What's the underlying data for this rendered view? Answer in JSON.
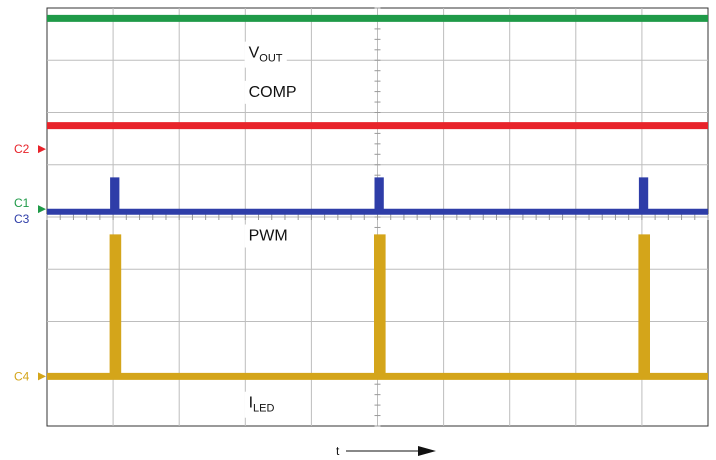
{
  "chart_data": {
    "type": "line",
    "title": "",
    "xlabel": "t",
    "ylabel": "",
    "grid": true,
    "grid_divisions": {
      "x": 10,
      "y": 8
    },
    "xlim": [
      0,
      10
    ],
    "ylim": [
      0,
      8
    ],
    "series": [
      {
        "id": "vout",
        "name_main": "V",
        "name_sub": "OUT",
        "color": "#1f9a48",
        "x": [
          0,
          10
        ],
        "y": [
          7.8,
          7.8
        ]
      },
      {
        "id": "comp",
        "name_main": "COMP",
        "name_sub": "",
        "color": "#e8232a",
        "x": [
          0,
          10
        ],
        "y": [
          5.75,
          5.75
        ]
      },
      {
        "id": "pwm",
        "name_main": "PWM",
        "name_sub": "",
        "color": "#2e3da8",
        "x": [
          0,
          1.0,
          1.0,
          1.05,
          1.05,
          5.0,
          5.0,
          5.05,
          5.05,
          9.0,
          9.0,
          9.05,
          9.05,
          10
        ],
        "y": [
          4.1,
          4.1,
          4.7,
          4.7,
          4.1,
          4.1,
          4.7,
          4.7,
          4.1,
          4.1,
          4.7,
          4.7,
          4.1,
          4.1
        ]
      },
      {
        "id": "iled",
        "name_main": "I",
        "name_sub": "LED",
        "color": "#d4a51a",
        "x": [
          0,
          1.0,
          1.0,
          1.07,
          1.07,
          5.0,
          5.0,
          5.07,
          5.07,
          9.0,
          9.0,
          9.07,
          9.07,
          10
        ],
        "y": [
          0.95,
          0.95,
          3.6,
          3.6,
          0.95,
          0.95,
          3.6,
          3.6,
          0.95,
          0.95,
          3.6,
          3.6,
          0.95,
          0.95
        ]
      }
    ],
    "channel_markers": [
      {
        "text": "C2",
        "color": "#e8232a",
        "level": 5.3
      },
      {
        "text": "C1",
        "color": "#1f9a48",
        "level": 4.15
      },
      {
        "text": "C3",
        "color": "#2e3da8",
        "level": 4.15
      },
      {
        "text": "C4",
        "color": "#d4a51a",
        "level": 0.95
      }
    ],
    "annotations": [
      {
        "series": "vout",
        "x": 3.05,
        "y": 7.05
      },
      {
        "series": "comp",
        "x": 3.05,
        "y": 6.3
      },
      {
        "series": "pwm",
        "x": 3.05,
        "y": 3.55
      },
      {
        "series": "iled",
        "x": 3.05,
        "y": 0.35
      }
    ]
  }
}
